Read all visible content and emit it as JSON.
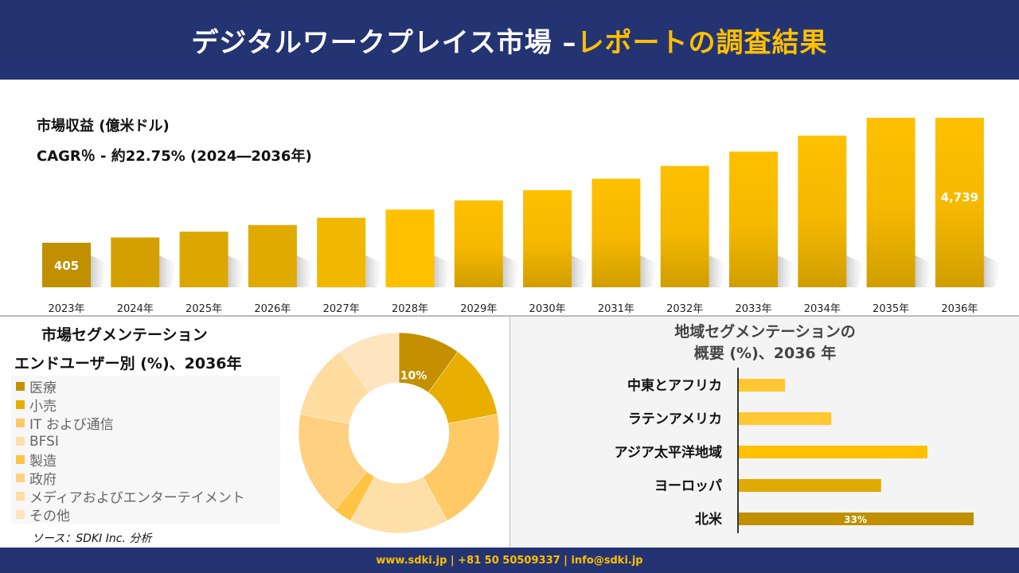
{
  "header": {
    "title_main": "デジタルワークプレイス市場 –",
    "title_accent": "レポートの調査結果"
  },
  "revenue": {
    "title": "市場収益 (億米ドル)",
    "cagr": "CAGR％ - 約22.75% (2024―2036年)"
  },
  "chart_data": [
    {
      "type": "bar",
      "title": "市場収益 (億米ドル)",
      "categories": [
        "2023年",
        "2024年",
        "2025年",
        "2026年",
        "2027年",
        "2028年",
        "2029年",
        "2030年",
        "2031年",
        "2032年",
        "2033年",
        "2034年",
        "2035年",
        "2036年"
      ],
      "values": [
        405,
        497,
        610,
        749,
        919,
        1128,
        1385,
        1700,
        2087,
        2562,
        3145,
        3860,
        4739,
        4739
      ],
      "labeled": {
        "2023年": "405",
        "2036年": "4,739"
      }
    },
    {
      "type": "pie",
      "title": "エンドユーザー別 (%)、2036年",
      "labels": [
        "医療",
        "小売",
        "IT および通信",
        "BFSI",
        "製造",
        "政府",
        "メディアおよびエンターテイメント",
        "その他"
      ],
      "values": [
        10,
        12,
        20,
        16,
        3,
        17,
        12,
        10
      ],
      "colors": [
        "#C49000",
        "#E8AE00",
        "#FFC966",
        "#FFDFA8",
        "#FFC444",
        "#FFD080",
        "#FFDCA0",
        "#FFE4C0"
      ],
      "data_labels": {
        "医療": "10%"
      }
    },
    {
      "type": "bar",
      "orientation": "horizontal",
      "title": "地域セグメンテーションの 概要 (%)、2036 年",
      "categories": [
        "中東とアフリカ",
        "ラテンアメリカ",
        "アジア太平洋地域",
        "ヨーロッパ",
        "北米"
      ],
      "values": [
        6.5,
        13,
        26.5,
        20,
        33
      ],
      "colors": [
        "#FFC832",
        "#FFC832",
        "#FFC000",
        "#E0AA00",
        "#C09000"
      ],
      "data_labels": {
        "北米": "33%"
      }
    }
  ],
  "segment": {
    "title": "市場セグメンテーション",
    "subtitle": "エンドユーザー別 (%)、2036年",
    "source": "ソース：SDKI Inc. 分析"
  },
  "region": {
    "title1": "地域セグメンテーションの",
    "title2": "概要 (%)、2036 年"
  },
  "footer": {
    "text": "www.sdki.jp | +81 50 50509337 | info@sdki.jp"
  }
}
